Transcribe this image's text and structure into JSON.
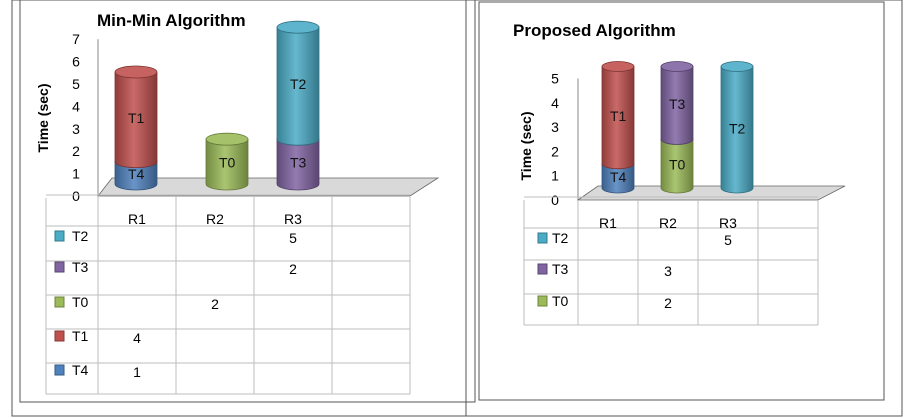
{
  "chart_data": [
    {
      "type": "bar",
      "stacked": true,
      "title": "Min-Min Algorithm",
      "ylabel": "Time (sec)",
      "ylim": [
        0,
        7
      ],
      "yticks": [
        "0",
        "1",
        "2",
        "3",
        "4",
        "5",
        "6",
        "7"
      ],
      "categories": [
        "R1",
        "R2",
        "R3",
        ""
      ],
      "series": [
        {
          "name": "T4",
          "color": "#4f81bd",
          "values": [
            1,
            null,
            null,
            null
          ]
        },
        {
          "name": "T1",
          "color": "#c0504d",
          "values": [
            4,
            null,
            null,
            null
          ]
        },
        {
          "name": "T0",
          "color": "#9bbb59",
          "values": [
            null,
            2,
            null,
            null
          ]
        },
        {
          "name": "T3",
          "color": "#8064a2",
          "values": [
            null,
            null,
            2,
            null
          ]
        },
        {
          "name": "T2",
          "color": "#4bacc6",
          "values": [
            null,
            null,
            5,
            null
          ]
        }
      ],
      "legend_position": "data-table",
      "table_rows": [
        "T2",
        "T3",
        "T0",
        "T1",
        "T4"
      ]
    },
    {
      "type": "bar",
      "stacked": true,
      "title": "Proposed Algorithm",
      "ylabel": "Time (sec)",
      "ylim": [
        0,
        5
      ],
      "yticks": [
        "0",
        "1",
        "2",
        "3",
        "4",
        "5"
      ],
      "categories": [
        "R1",
        "R2",
        "R3",
        ""
      ],
      "series": [
        {
          "name": "T4",
          "color": "#4f81bd",
          "values": [
            1,
            null,
            null,
            null
          ]
        },
        {
          "name": "T1",
          "color": "#c0504d",
          "values": [
            4,
            null,
            null,
            null
          ]
        },
        {
          "name": "T0",
          "color": "#9bbb59",
          "values": [
            null,
            2,
            null,
            null
          ]
        },
        {
          "name": "T3",
          "color": "#8064a2",
          "values": [
            null,
            3,
            null,
            null
          ]
        },
        {
          "name": "T2",
          "color": "#4bacc6",
          "values": [
            null,
            null,
            5,
            null
          ]
        }
      ],
      "legend_position": "data-table",
      "table_rows": [
        "T2",
        "T3",
        "T0"
      ]
    }
  ]
}
